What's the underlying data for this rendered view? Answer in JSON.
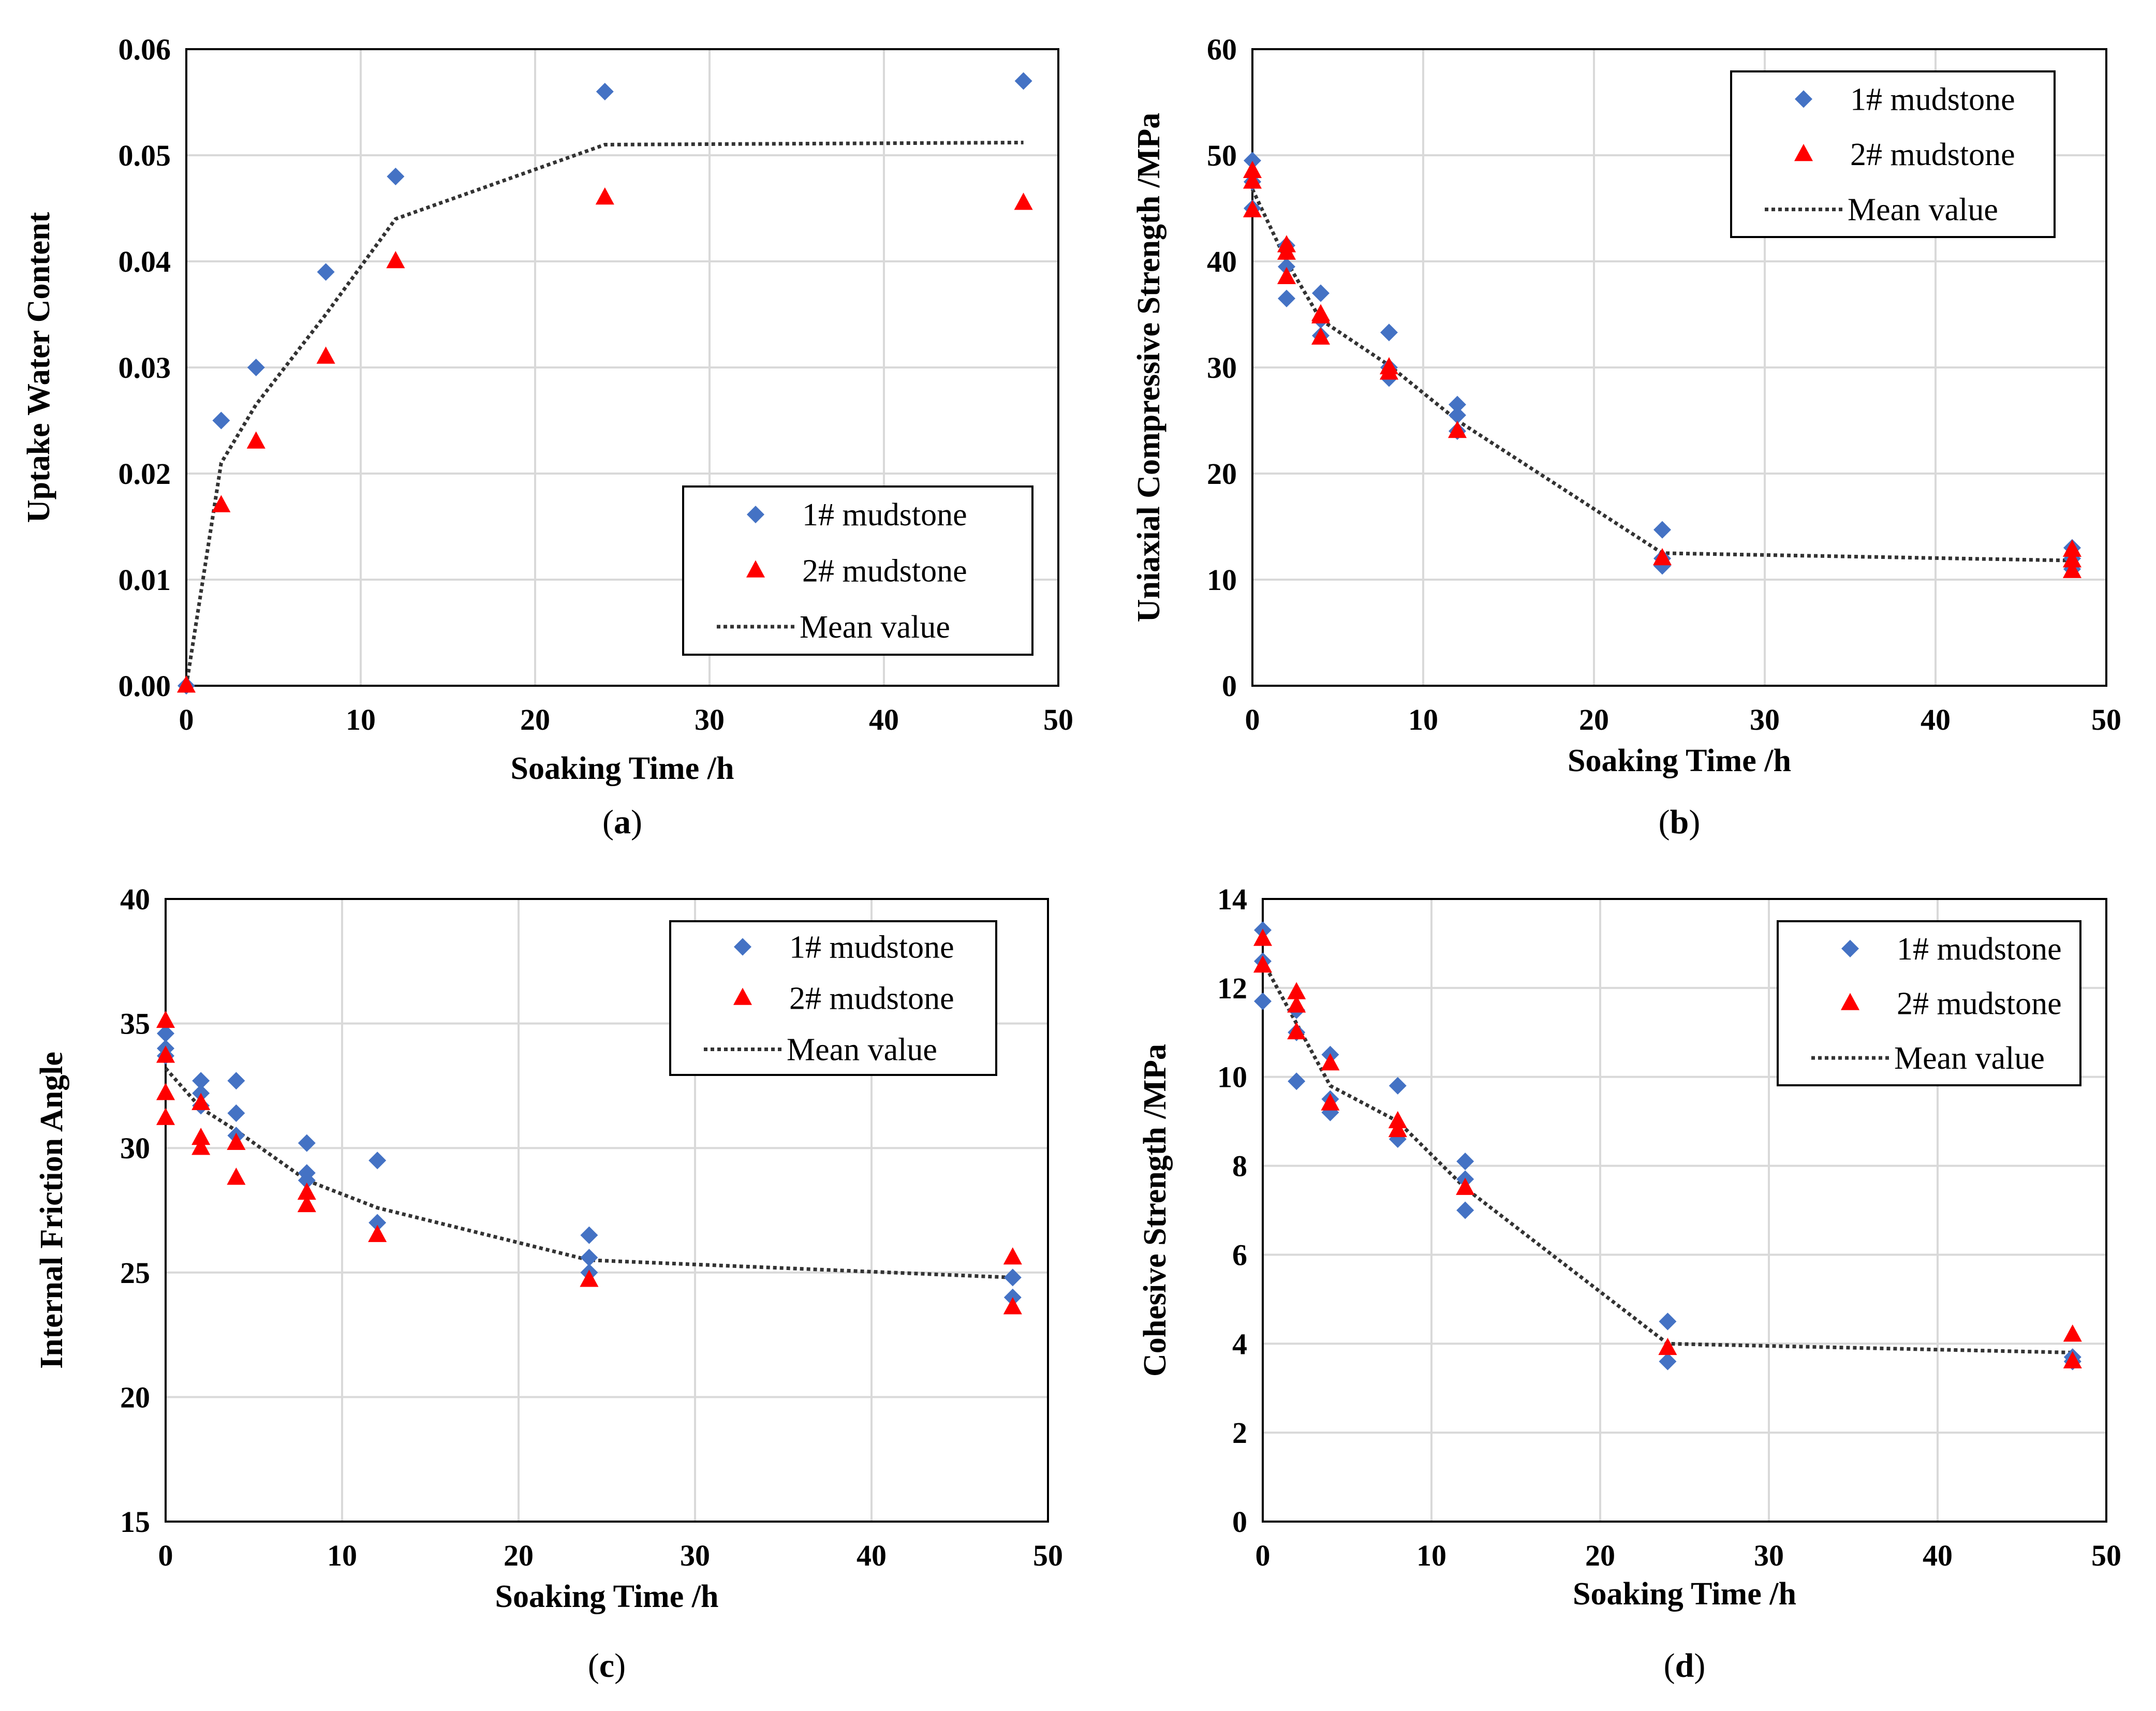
{
  "colors": {
    "series1": "#4472C4",
    "series2": "#FF0000",
    "mean": "#333333",
    "grid": "#D9D9D9",
    "frame": "#000000"
  },
  "chart_data": [
    {
      "id": "a",
      "panel_label": "a",
      "type": "scatter",
      "xlabel": "Soaking Time /h",
      "ylabel": "Uptake Water Content",
      "xlim": [
        0,
        50
      ],
      "ylim": [
        0,
        0.06
      ],
      "xticks": [
        0,
        10,
        20,
        30,
        40,
        50
      ],
      "yticks": [
        0,
        0.01,
        0.02,
        0.03,
        0.04,
        0.05,
        0.06
      ],
      "ytick_labels": [
        "0.00",
        "0.01",
        "0.02",
        "0.03",
        "0.04",
        "0.05",
        "0.06"
      ],
      "legend_position": "bottom-right",
      "series": [
        {
          "name": "1# mudstone",
          "marker": "diamond",
          "x": [
            0,
            2,
            4,
            8,
            12,
            24,
            48
          ],
          "y": [
            0,
            0.025,
            0.03,
            0.039,
            0.048,
            0.056,
            0.057
          ]
        },
        {
          "name": "2# mudstone",
          "marker": "triangle",
          "x": [
            0,
            2,
            4,
            8,
            12,
            24,
            48
          ],
          "y": [
            0,
            0.017,
            0.023,
            0.031,
            0.04,
            0.046,
            0.0455
          ]
        },
        {
          "name": "Mean value",
          "marker": "dotted-line",
          "x": [
            0,
            2,
            4,
            8,
            12,
            24,
            48
          ],
          "y": [
            0,
            0.021,
            0.0265,
            0.035,
            0.044,
            0.051,
            0.0512
          ]
        }
      ]
    },
    {
      "id": "b",
      "panel_label": "b",
      "type": "scatter",
      "xlabel": "Soaking Time /h",
      "ylabel": "Uniaxial Compressive Strength /MPa",
      "xlim": [
        0,
        50
      ],
      "ylim": [
        0,
        60
      ],
      "xticks": [
        0,
        10,
        20,
        30,
        40,
        50
      ],
      "yticks": [
        0,
        10,
        20,
        30,
        40,
        50,
        60
      ],
      "ytick_labels": [
        "0",
        "10",
        "20",
        "30",
        "40",
        "50",
        "60"
      ],
      "legend_position": "top-right",
      "series": [
        {
          "name": "1# mudstone",
          "marker": "diamond",
          "x": [
            0,
            0,
            0,
            2,
            2,
            2,
            4,
            4,
            4,
            8,
            8,
            8,
            12,
            12,
            12,
            24,
            24,
            24,
            48,
            48,
            48
          ],
          "y": [
            49.5,
            47.5,
            45.0,
            41.5,
            39.5,
            36.5,
            37.0,
            34.5,
            33.0,
            33.3,
            30.0,
            29.0,
            26.5,
            25.5,
            24.0,
            14.7,
            12.0,
            11.3,
            13.0,
            12.0,
            11.0
          ]
        },
        {
          "name": "2# mudstone",
          "marker": "triangle",
          "x": [
            0,
            0,
            0,
            2,
            2,
            2,
            4,
            4,
            4,
            8,
            8,
            12,
            24,
            48,
            48,
            48
          ],
          "y": [
            48.5,
            47.5,
            44.8,
            41.5,
            40.8,
            38.5,
            35.0,
            34.8,
            32.8,
            30.0,
            29.5,
            24.0,
            12.0,
            12.8,
            11.8,
            10.8
          ]
        },
        {
          "name": "Mean value",
          "marker": "dotted-line",
          "x": [
            0,
            2,
            4,
            8,
            12,
            24,
            48
          ],
          "y": [
            46.8,
            40.0,
            34.5,
            30.2,
            25.0,
            12.5,
            11.8
          ]
        }
      ]
    },
    {
      "id": "c",
      "panel_label": "c",
      "type": "scatter",
      "xlabel": "Soaking Time /h",
      "ylabel": "Internal Friction Angle",
      "xlim": [
        0,
        50
      ],
      "ylim": [
        15,
        40
      ],
      "xticks": [
        0,
        10,
        20,
        30,
        40,
        50
      ],
      "yticks": [
        15,
        20,
        25,
        30,
        35,
        40
      ],
      "ytick_labels": [
        "15",
        "20",
        "25",
        "30",
        "35",
        "40"
      ],
      "legend_position": "top-right",
      "series": [
        {
          "name": "1# mudstone",
          "marker": "diamond",
          "x": [
            0,
            0,
            0,
            2,
            2,
            2,
            4,
            4,
            4,
            8,
            8,
            8,
            12,
            12,
            24,
            24,
            24,
            48,
            48
          ],
          "y": [
            34.6,
            34.0,
            33.7,
            32.7,
            32.2,
            31.7,
            32.7,
            31.4,
            30.5,
            30.2,
            29.0,
            28.7,
            29.5,
            27.0,
            26.5,
            25.6,
            25.0,
            24.8,
            24.0
          ]
        },
        {
          "name": "2# mudstone",
          "marker": "triangle",
          "x": [
            0,
            0,
            0,
            0,
            2,
            2,
            2,
            4,
            4,
            8,
            8,
            12,
            24,
            48,
            48
          ],
          "y": [
            35.1,
            33.7,
            32.2,
            31.2,
            31.8,
            30.4,
            30.0,
            30.2,
            28.8,
            28.2,
            27.7,
            26.5,
            24.7,
            25.6,
            23.6
          ]
        },
        {
          "name": "Mean value",
          "marker": "dotted-line",
          "x": [
            0,
            2,
            4,
            8,
            12,
            24,
            48
          ],
          "y": [
            33.2,
            31.6,
            30.7,
            28.7,
            27.6,
            25.5,
            24.8
          ]
        }
      ]
    },
    {
      "id": "d",
      "panel_label": "d",
      "type": "scatter",
      "xlabel": "Soaking Time /h",
      "ylabel": "Cohesive Strength /MPa",
      "xlim": [
        0,
        50
      ],
      "ylim": [
        0,
        14
      ],
      "xticks": [
        0,
        10,
        20,
        30,
        40,
        50
      ],
      "yticks": [
        0,
        2,
        4,
        6,
        8,
        10,
        12,
        14
      ],
      "ytick_labels": [
        "0",
        "2",
        "4",
        "6",
        "8",
        "10",
        "12",
        "14"
      ],
      "legend_position": "top-right",
      "series": [
        {
          "name": "1# mudstone",
          "marker": "diamond",
          "x": [
            0,
            0,
            0,
            2,
            2,
            2,
            4,
            4,
            4,
            8,
            8,
            12,
            12,
            12,
            24,
            24,
            48,
            48
          ],
          "y": [
            13.3,
            12.6,
            11.7,
            11.5,
            11.0,
            9.9,
            10.5,
            9.5,
            9.2,
            9.8,
            8.6,
            8.1,
            7.7,
            7.0,
            4.5,
            3.6,
            3.7,
            3.6
          ]
        },
        {
          "name": "2# mudstone",
          "marker": "triangle",
          "x": [
            0,
            0,
            2,
            2,
            2,
            4,
            4,
            8,
            8,
            12,
            24,
            48,
            48
          ],
          "y": [
            13.1,
            12.5,
            11.9,
            11.6,
            11.0,
            10.3,
            9.4,
            9.0,
            8.8,
            7.5,
            3.9,
            4.2,
            3.6
          ]
        },
        {
          "name": "Mean value",
          "marker": "dotted-line",
          "x": [
            0,
            2,
            4,
            8,
            12,
            24,
            48
          ],
          "y": [
            12.6,
            11.2,
            9.8,
            9.0,
            7.5,
            4.0,
            3.8
          ]
        }
      ]
    }
  ]
}
